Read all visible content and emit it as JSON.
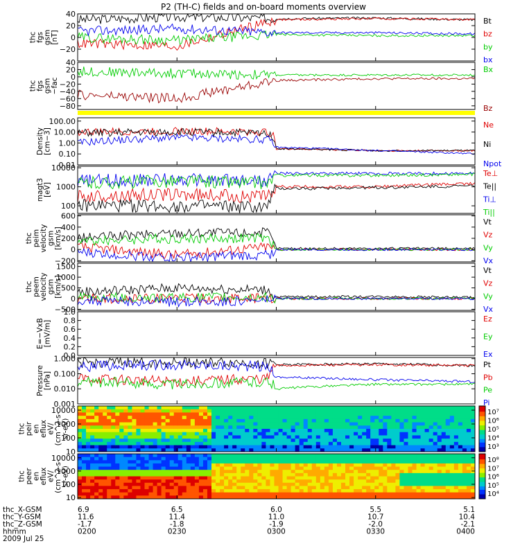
{
  "title": "P2 (TH-C) fields and on-board moments overview",
  "colors": {
    "black": "#000000",
    "red": "#e00000",
    "green": "#00cc00",
    "blue": "#0000ee",
    "darkred": "#990000",
    "yellow": "#ffff00"
  },
  "time_axis": {
    "hhmm": [
      "0200",
      "0230",
      "0300",
      "0330",
      "0400"
    ],
    "rows": [
      {
        "label": "thc_X-GSM",
        "values": [
          "6.9",
          "6.5",
          "6.0",
          "5.5",
          "5.1"
        ]
      },
      {
        "label": "thc_Y-GSM",
        "values": [
          "11.6",
          "11.4",
          "11.0",
          "10.7",
          "10.4"
        ]
      },
      {
        "label": "thc_Z-GSM",
        "values": [
          "-1.7",
          "-1.8",
          "-1.9",
          "-2.0",
          "-2.1"
        ]
      },
      {
        "label": "hhmm",
        "values": [
          "0200",
          "0230",
          "0300",
          "0330",
          "0400"
        ]
      }
    ],
    "date": "2009 Jul 25"
  },
  "chart_data": [
    {
      "type": "line",
      "ylabel": [
        "thc",
        "fgs",
        "gsm",
        "[nT]"
      ],
      "ylim": [
        -40,
        40
      ],
      "yticks": [
        "40",
        "20",
        "0",
        "−20",
        ""
      ],
      "yticks_values": [
        40,
        20,
        0,
        -20,
        -40
      ],
      "series": [
        {
          "name": "Bt",
          "color": "#000000",
          "x": [
            0,
            25,
            50,
            75,
            100
          ],
          "y": [
            30,
            35,
            32,
            33,
            30
          ]
        },
        {
          "name": "bz",
          "color": "#e00000",
          "x": [
            0,
            25,
            50,
            75,
            100
          ],
          "y": [
            -10,
            -15,
            30,
            32,
            30
          ]
        },
        {
          "name": "by",
          "color": "#00cc00",
          "x": [
            0,
            25,
            50,
            75,
            100
          ],
          "y": [
            0,
            -5,
            5,
            3,
            3
          ]
        },
        {
          "name": "bx",
          "color": "#0000ee",
          "x": [
            0,
            25,
            50,
            75,
            100
          ],
          "y": [
            10,
            15,
            8,
            8,
            6
          ]
        }
      ]
    },
    {
      "type": "line",
      "ylabel": [
        "thc",
        "fgs",
        "gsm",
        "−fac"
      ],
      "ylim": [
        -90,
        40
      ],
      "yticks": [
        "40",
        "20",
        "0",
        "−20",
        "−40",
        "−60",
        "−80"
      ],
      "yticks_values": [
        40,
        20,
        0,
        -20,
        -40,
        -60,
        -80
      ],
      "series": [
        {
          "name": "Bx",
          "color": "#00cc00",
          "x": [
            0,
            25,
            50,
            75,
            100
          ],
          "y": [
            15,
            10,
            5,
            5,
            5
          ]
        },
        {
          "name": "Bz",
          "color": "#990000",
          "x": [
            0,
            25,
            50,
            75,
            100
          ],
          "y": [
            -50,
            -60,
            -10,
            -5,
            -5
          ]
        }
      ]
    },
    {
      "type": "line",
      "ylabel": [
        "Density",
        "[cm−3]"
      ],
      "yscale": "log",
      "ylim": [
        0.01,
        200
      ],
      "yticks": [
        "100.00",
        "10.00",
        "1.00",
        "0.10",
        "0.01"
      ],
      "yticks_values": [
        100,
        10,
        1,
        0.1,
        0.01
      ],
      "series": [
        {
          "name": "Ne",
          "color": "#e00000",
          "x": [
            0,
            25,
            48,
            50,
            75,
            100
          ],
          "y": [
            10,
            12,
            10,
            0.3,
            0.2,
            0.2
          ]
        },
        {
          "name": "Ni",
          "color": "#000000",
          "x": [
            0,
            25,
            48,
            50,
            75,
            100
          ],
          "y": [
            8,
            10,
            8,
            0.3,
            0.2,
            0.2
          ]
        },
        {
          "name": "Npot",
          "color": "#0000ee",
          "x": [
            0,
            25,
            48,
            50,
            75,
            100
          ],
          "y": [
            1,
            3,
            2,
            0.4,
            0.2,
            0.1
          ]
        }
      ]
    },
    {
      "type": "line",
      "ylabel": [
        "magt3",
        "[eV]"
      ],
      "yscale": "log",
      "ylim": [
        40,
        12000
      ],
      "yticks": [
        "10000",
        "1000",
        "100"
      ],
      "yticks_values": [
        10000,
        1000,
        100
      ],
      "series": [
        {
          "name": "Te⊥",
          "color": "#e00000",
          "x": [
            0,
            25,
            48,
            50,
            75,
            100
          ],
          "y": [
            300,
            400,
            300,
            1000,
            1000,
            1500
          ]
        },
        {
          "name": "Te||",
          "color": "#000000",
          "x": [
            0,
            25,
            48,
            50,
            75,
            100
          ],
          "y": [
            100,
            100,
            80,
            800,
            900,
            1100
          ]
        },
        {
          "name": "Ti⊥",
          "color": "#0000ee",
          "x": [
            0,
            25,
            48,
            50,
            75,
            100
          ],
          "y": [
            2000,
            2500,
            2000,
            5000,
            5000,
            5000
          ]
        },
        {
          "name": "Ti||",
          "color": "#00cc00",
          "x": [
            0,
            25,
            48,
            50,
            75,
            100
          ],
          "y": [
            1500,
            2000,
            1500,
            4000,
            4000,
            4500
          ]
        }
      ]
    },
    {
      "type": "line",
      "ylabel": [
        "thc",
        "peim",
        "velocity",
        "gsm",
        "[km/s]"
      ],
      "ylim": [
        -220,
        620
      ],
      "yticks": [
        "600",
        "400",
        "200",
        "0",
        "−200"
      ],
      "yticks_values": [
        600,
        400,
        200,
        0,
        -200
      ],
      "series": [
        {
          "name": "Vt",
          "color": "#000000",
          "x": [
            0,
            25,
            48,
            50,
            75,
            100
          ],
          "y": [
            200,
            300,
            300,
            20,
            20,
            20
          ]
        },
        {
          "name": "Vz",
          "color": "#e00000",
          "x": [
            0,
            25,
            48,
            50,
            75,
            100
          ],
          "y": [
            50,
            -100,
            50,
            0,
            0,
            0
          ]
        },
        {
          "name": "Vy",
          "color": "#00cc00",
          "x": [
            0,
            25,
            48,
            50,
            75,
            100
          ],
          "y": [
            150,
            200,
            200,
            0,
            0,
            0
          ]
        },
        {
          "name": "Vx",
          "color": "#0000ee",
          "x": [
            0,
            25,
            48,
            50,
            75,
            100
          ],
          "y": [
            -50,
            -150,
            -100,
            0,
            0,
            0
          ]
        }
      ]
    },
    {
      "type": "line",
      "ylabel": [
        "thc",
        "peem",
        "velocity",
        "gsm",
        "[km/s]"
      ],
      "ylim": [
        -550,
        1650
      ],
      "yticks": [
        "1500",
        "1000",
        "500",
        "0",
        "−500"
      ],
      "yticks_values": [
        1500,
        1000,
        500,
        0,
        -500
      ],
      "series": [
        {
          "name": "Vt",
          "color": "#000000",
          "x": [
            0,
            25,
            48,
            50,
            75,
            100
          ],
          "y": [
            300,
            500,
            400,
            80,
            100,
            60
          ]
        },
        {
          "name": "Vz",
          "color": "#e00000",
          "x": [
            0,
            25,
            48,
            50,
            75,
            100
          ],
          "y": [
            0,
            0,
            0,
            0,
            0,
            0
          ]
        },
        {
          "name": "Vy",
          "color": "#00cc00",
          "x": [
            0,
            25,
            48,
            50,
            75,
            100
          ],
          "y": [
            50,
            50,
            50,
            0,
            0,
            0
          ]
        },
        {
          "name": "Vx",
          "color": "#0000ee",
          "x": [
            0,
            25,
            48,
            50,
            75,
            100
          ],
          "y": [
            -100,
            -150,
            -100,
            0,
            0,
            0
          ]
        }
      ]
    },
    {
      "type": "line",
      "ylabel": [
        "E=−VxB",
        "[mV/m]"
      ],
      "ylim": [
        0,
        1
      ],
      "yticks": [
        "1.0",
        "0.8",
        "0.6",
        "0.4",
        "0.2",
        "0.0"
      ],
      "yticks_values": [
        1,
        0.8,
        0.6,
        0.4,
        0.2,
        0
      ],
      "series": [
        {
          "name": "Ez",
          "color": "#e00000",
          "x": [],
          "y": []
        },
        {
          "name": "Ey",
          "color": "#00cc00",
          "x": [],
          "y": []
        },
        {
          "name": "Ex",
          "color": "#0000ee",
          "x": [],
          "y": []
        }
      ]
    },
    {
      "type": "line",
      "ylabel": [
        "Pressure",
        "[nPa]"
      ],
      "yscale": "log",
      "ylim": [
        0.001,
        1.2
      ],
      "yticks": [
        "1.000",
        "0.100",
        "0.010",
        "0.001"
      ],
      "yticks_values": [
        1,
        0.1,
        0.01,
        0.001
      ],
      "series": [
        {
          "name": "Pt",
          "color": "#000000",
          "x": [
            0,
            25,
            48,
            50,
            75,
            100
          ],
          "y": [
            0.5,
            0.6,
            0.5,
            0.4,
            0.45,
            0.35
          ]
        },
        {
          "name": "Pb",
          "color": "#e00000",
          "x": [
            0,
            25,
            48,
            50,
            75,
            100
          ],
          "y": [
            0.05,
            0.03,
            0.05,
            0.35,
            0.4,
            0.35
          ]
        },
        {
          "name": "Pe",
          "color": "#00cc00",
          "x": [
            0,
            25,
            48,
            50,
            75,
            100
          ],
          "y": [
            0.03,
            0.02,
            0.03,
            0.01,
            0.02,
            0.02
          ]
        },
        {
          "name": "Pi",
          "color": "#0000ee",
          "x": [
            0,
            25,
            48,
            50,
            75,
            100
          ],
          "y": [
            0.3,
            0.4,
            0.3,
            0.06,
            0.04,
            0.03
          ]
        }
      ]
    },
    {
      "type": "heatmap",
      "ylabel": [
        "thc",
        "peir",
        "en",
        "eflux",
        "eV/",
        "(cm^2-s-",
        "sr-eV)"
      ],
      "yscale": "log",
      "ylim": [
        10,
        20000
      ],
      "yticks": [
        "10000",
        "1000",
        "100",
        "10"
      ],
      "yticks_values": [
        10000,
        1000,
        100,
        10
      ],
      "colorbar_ticks": [
        "10⁷",
        "10⁶",
        "10⁵",
        "10⁴",
        "10³"
      ],
      "colorbar_range": [
        1000,
        10000000
      ]
    },
    {
      "type": "heatmap",
      "ylabel": [
        "thc",
        "peer",
        "en",
        "eflux",
        "eV/",
        "(cm^2-s-",
        "sr-eV)"
      ],
      "yscale": "log",
      "ylim": [
        8,
        20000
      ],
      "yticks": [
        "10000",
        "1000",
        "100",
        "10"
      ],
      "yticks_values": [
        10000,
        1000,
        100,
        10
      ],
      "colorbar_ticks": [
        "10⁸",
        "10⁷",
        "10⁶",
        "10⁵",
        "10⁴"
      ],
      "colorbar_range": [
        10000,
        100000000
      ]
    }
  ]
}
